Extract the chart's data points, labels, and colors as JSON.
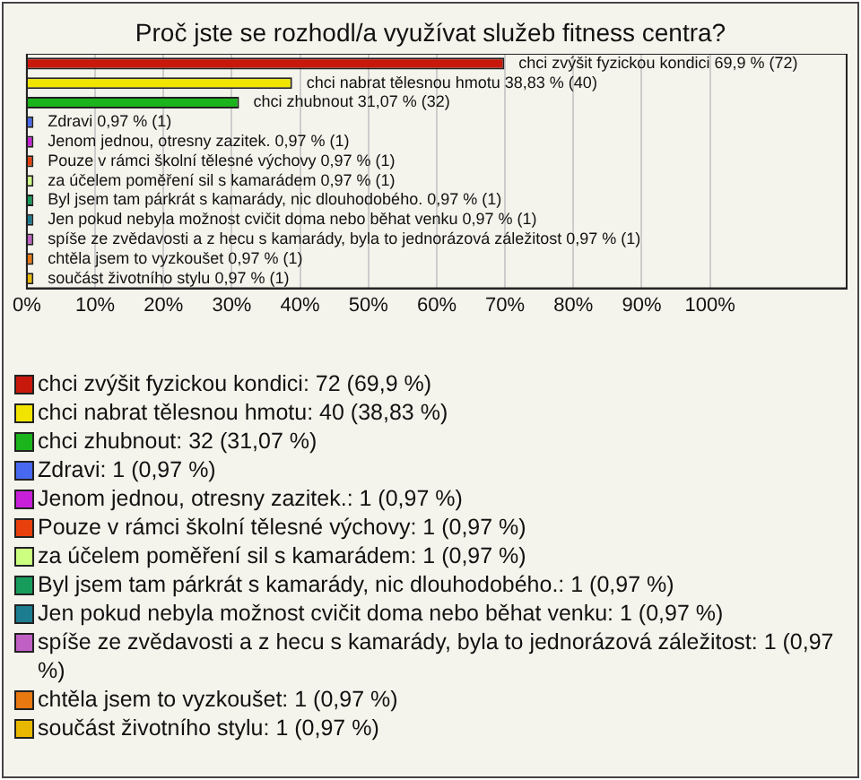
{
  "chart_data": {
    "type": "bar",
    "orientation": "horizontal",
    "title": "Proč jste se rozhodl/a využívat služeb fitness centra?",
    "categories": [
      "chci zvýšit fyzickou kondici",
      "chci nabrat tělesnou hmotu",
      "chci zhubnout",
      "Zdravi",
      "Jenom jednou, otresny zazitek.",
      "Pouze v rámci školní tělesné výchovy",
      "za účelem poměření sil s kamarádem",
      "Byl jsem tam párkrát s kamarády, nic dlouhodobého.",
      "Jen pokud nebyla možnost cvičit doma nebo běhat venku",
      "spíše ze zvědavosti a z hecu s kamarády, byla to jednorázová záležitost",
      "chtěla jsem to vyzkoušet",
      "součást životního stylu"
    ],
    "values": [
      69.9,
      38.83,
      31.07,
      0.97,
      0.97,
      0.97,
      0.97,
      0.97,
      0.97,
      0.97,
      0.97,
      0.97
    ],
    "value_labels": [
      "69,9 % (72)",
      "38,83 % (40)",
      "31,07 % (32)",
      "0,97 % (1)",
      "0,97 % (1)",
      "0,97 % (1)",
      "0,97 % (1)",
      "0,97 % (1)",
      "0,97 % (1)",
      "0,97 % (1)",
      "0,97 % (1)",
      "0,97 % (1)"
    ],
    "colors": [
      "#c8180c",
      "#f0e400",
      "#1cb41c",
      "#4868f0",
      "#c820d8",
      "#e8400c",
      "#ccff80",
      "#189c5c",
      "#1c7c90",
      "#c060c4",
      "#e87810",
      "#e8b800"
    ],
    "xlim": [
      0,
      120
    ],
    "xticks": [
      {
        "value": 0,
        "label": "0%"
      },
      {
        "value": 10,
        "label": "10%"
      },
      {
        "value": 20,
        "label": "20%"
      },
      {
        "value": 30,
        "label": "30%"
      },
      {
        "value": 40,
        "label": "40%"
      },
      {
        "value": 50,
        "label": "50%"
      },
      {
        "value": 60,
        "label": "60%"
      },
      {
        "value": 70,
        "label": "70%"
      },
      {
        "value": 80,
        "label": "80%"
      },
      {
        "value": 90,
        "label": "90%"
      },
      {
        "value": 100,
        "label": "100%"
      }
    ],
    "grid": "x",
    "annotations": [
      "chci zvýšit fyzickou kondici: 72 (69,9 %)",
      "chci nabrat tělesnou hmotu: 40 (38,83 %)",
      "chci zhubnout: 32 (31,07 %)",
      "Zdravi: 1 (0,97 %)",
      "Jenom jednou, otresny zazitek.: 1 (0,97 %)",
      "Pouze v rámci školní tělesné výchovy: 1 (0,97 %)",
      "za účelem poměření sil s kamarádem: 1 (0,97 %)",
      "Byl jsem tam párkrát s kamarády, nic dlouhodobého.: 1 (0,97 %)",
      "Jen pokud nebyla možnost cvičit doma nebo běhat venku: 1 (0,97 %)",
      "spíše ze zvědavosti a z hecu s kamarády, byla to jednorázová záležitost: 1 (0,97 %)",
      "chtěla jsem to vyzkoušet: 1 (0,97 %)",
      "součást životního stylu: 1 (0,97 %)"
    ]
  }
}
